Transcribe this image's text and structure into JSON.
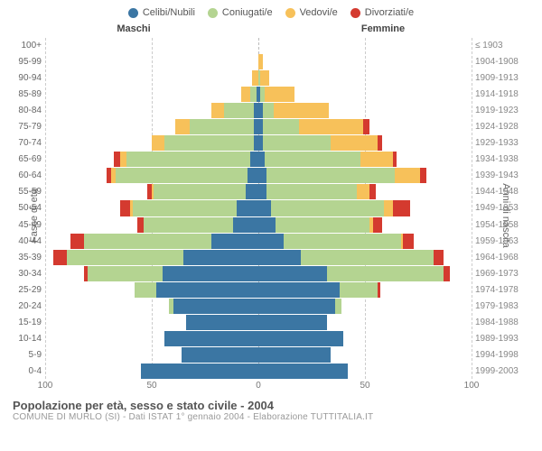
{
  "chart": {
    "type": "population-pyramid",
    "legend": [
      {
        "label": "Celibi/Nubili",
        "color": "#3b76a3"
      },
      {
        "label": "Coniugati/e",
        "color": "#b4d491"
      },
      {
        "label": "Vedovi/e",
        "color": "#f7c15a"
      },
      {
        "label": "Divorziati/e",
        "color": "#d43a2f"
      }
    ],
    "headers": {
      "male": "Maschi",
      "female": "Femmine",
      "birth_years": "≤ 1903"
    },
    "y_left_title": "Fasce di età",
    "y_right_title": "Anni di nascita",
    "x_max": 100,
    "x_ticks": [
      100,
      50,
      0,
      50,
      100
    ],
    "colors": {
      "single": "#3b76a3",
      "married": "#b4d491",
      "widowed": "#f7c15a",
      "divorced": "#d43a2f",
      "grid": "#cccccc",
      "background": "#ffffff"
    },
    "rows": [
      {
        "age": "100+",
        "year": "≤ 1903",
        "m": [
          0,
          0,
          0,
          0
        ],
        "f": [
          0,
          0,
          0,
          0
        ]
      },
      {
        "age": "95-99",
        "year": "1904-1908",
        "m": [
          0,
          0,
          0,
          0
        ],
        "f": [
          0,
          0,
          2,
          0
        ]
      },
      {
        "age": "90-94",
        "year": "1909-1913",
        "m": [
          0,
          0,
          3,
          0
        ],
        "f": [
          0,
          1,
          4,
          0
        ]
      },
      {
        "age": "85-89",
        "year": "1914-1918",
        "m": [
          1,
          3,
          4,
          0
        ],
        "f": [
          1,
          2,
          14,
          0
        ]
      },
      {
        "age": "80-84",
        "year": "1919-1923",
        "m": [
          2,
          14,
          6,
          0
        ],
        "f": [
          2,
          5,
          26,
          0
        ]
      },
      {
        "age": "75-79",
        "year": "1924-1928",
        "m": [
          2,
          30,
          7,
          0
        ],
        "f": [
          2,
          17,
          30,
          3
        ]
      },
      {
        "age": "70-74",
        "year": "1929-1933",
        "m": [
          2,
          42,
          6,
          0
        ],
        "f": [
          2,
          32,
          22,
          2
        ]
      },
      {
        "age": "65-69",
        "year": "1934-1938",
        "m": [
          4,
          58,
          3,
          3
        ],
        "f": [
          3,
          45,
          15,
          2
        ]
      },
      {
        "age": "60-64",
        "year": "1939-1943",
        "m": [
          5,
          62,
          2,
          2
        ],
        "f": [
          4,
          60,
          12,
          3
        ]
      },
      {
        "age": "55-59",
        "year": "1944-1948",
        "m": [
          6,
          43,
          1,
          2
        ],
        "f": [
          4,
          42,
          6,
          3
        ]
      },
      {
        "age": "50-54",
        "year": "1949-1953",
        "m": [
          10,
          49,
          1,
          5
        ],
        "f": [
          6,
          53,
          4,
          8
        ]
      },
      {
        "age": "45-49",
        "year": "1954-1958",
        "m": [
          12,
          42,
          0,
          3
        ],
        "f": [
          8,
          44,
          2,
          4
        ]
      },
      {
        "age": "40-44",
        "year": "1959-1963",
        "m": [
          22,
          60,
          0,
          6
        ],
        "f": [
          12,
          55,
          1,
          5
        ]
      },
      {
        "age": "35-39",
        "year": "1964-1968",
        "m": [
          35,
          55,
          0,
          6
        ],
        "f": [
          20,
          62,
          0,
          5
        ]
      },
      {
        "age": "30-34",
        "year": "1969-1973",
        "m": [
          45,
          35,
          0,
          2
        ],
        "f": [
          32,
          55,
          0,
          3
        ]
      },
      {
        "age": "25-29",
        "year": "1974-1978",
        "m": [
          48,
          10,
          0,
          0
        ],
        "f": [
          38,
          18,
          0,
          1
        ]
      },
      {
        "age": "20-24",
        "year": "1979-1983",
        "m": [
          40,
          2,
          0,
          0
        ],
        "f": [
          36,
          3,
          0,
          0
        ]
      },
      {
        "age": "15-19",
        "year": "1984-1988",
        "m": [
          34,
          0,
          0,
          0
        ],
        "f": [
          32,
          0,
          0,
          0
        ]
      },
      {
        "age": "10-14",
        "year": "1989-1993",
        "m": [
          44,
          0,
          0,
          0
        ],
        "f": [
          40,
          0,
          0,
          0
        ]
      },
      {
        "age": "5-9",
        "year": "1994-1998",
        "m": [
          36,
          0,
          0,
          0
        ],
        "f": [
          34,
          0,
          0,
          0
        ]
      },
      {
        "age": "0-4",
        "year": "1999-2003",
        "m": [
          55,
          0,
          0,
          0
        ],
        "f": [
          42,
          0,
          0,
          0
        ]
      }
    ],
    "footer": {
      "title": "Popolazione per età, sesso e stato civile - 2004",
      "sub": "COMUNE DI MURLO (SI) - Dati ISTAT 1° gennaio 2004 - Elaborazione TUTTITALIA.IT"
    }
  }
}
